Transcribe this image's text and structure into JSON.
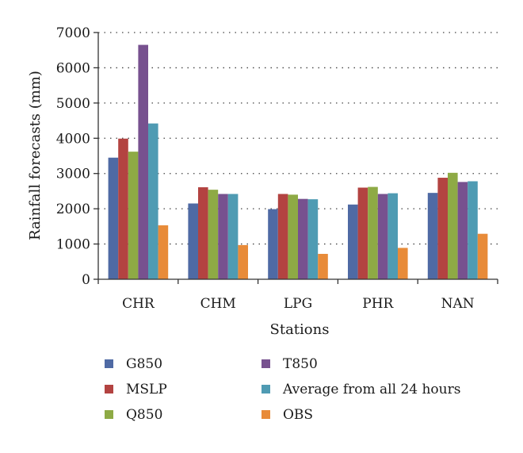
{
  "chart_data": {
    "type": "bar",
    "title": "",
    "xlabel": "Stations",
    "ylabel": "Rainfall forecasts (mm)",
    "ylim": [
      0,
      7000
    ],
    "yticks": [
      0,
      1000,
      2000,
      3000,
      4000,
      5000,
      6000,
      7000
    ],
    "grid": "horizontal-dotted",
    "legend_position": "bottom",
    "categories": [
      "CHR",
      "CHM",
      "LPG",
      "PHR",
      "NAN"
    ],
    "series": [
      {
        "name": "G850",
        "color": "#4f6aa4",
        "values": [
          3450,
          2150,
          1990,
          2120,
          2450
        ]
      },
      {
        "name": "MSLP",
        "color": "#b34341",
        "values": [
          3990,
          2610,
          2420,
          2600,
          2880
        ]
      },
      {
        "name": "Q850",
        "color": "#8eaa45",
        "values": [
          3620,
          2540,
          2400,
          2620,
          3020
        ]
      },
      {
        "name": "T850",
        "color": "#77518f",
        "values": [
          6650,
          2420,
          2280,
          2420,
          2760
        ]
      },
      {
        "name": "Average from all 24 hours",
        "color": "#4f9bb3",
        "values": [
          4420,
          2420,
          2270,
          2440,
          2780
        ]
      },
      {
        "name": "OBS",
        "color": "#e88b39",
        "values": [
          1530,
          970,
          720,
          890,
          1290
        ]
      }
    ]
  }
}
